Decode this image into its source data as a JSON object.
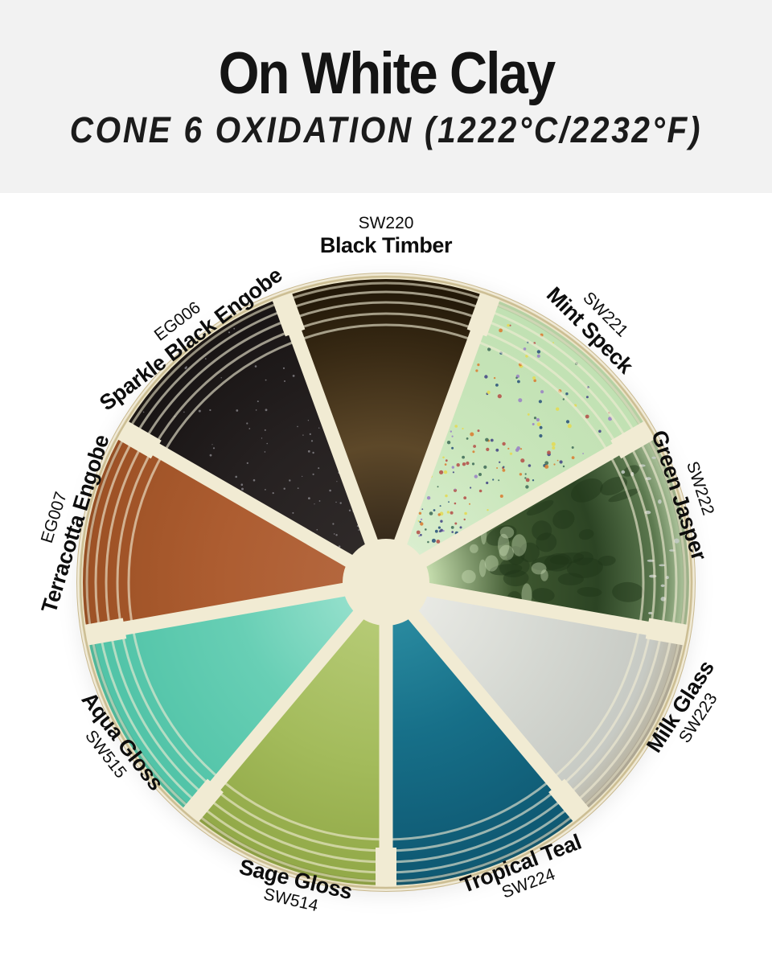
{
  "header": {
    "title": "On White Clay",
    "subtitle": "CONE 6 OXIDATION (1222°C/2232°F)"
  },
  "plate": {
    "colors": {
      "cream": "#f1ebd3",
      "edge": "#c9b98e",
      "base": "#ebe3c6",
      "page_bg": "#ffffff",
      "header_bg": "#f2f2f2",
      "text": "#141414"
    },
    "segments": [
      {
        "code": "SW220",
        "name": "Black Timber",
        "stops": [
          [
            "10%",
            "#32271a"
          ],
          [
            "45%",
            "#5d4829"
          ],
          [
            "75%",
            "#3a2b15"
          ],
          [
            "97%",
            "#221808"
          ]
        ]
      },
      {
        "code": "SW221",
        "name": "Mint Speck",
        "stops": [
          [
            "12%",
            "#daeecf"
          ],
          [
            "55%",
            "#c9e6bb"
          ],
          [
            "95%",
            "#c1e1b3"
          ]
        ],
        "speckles": [
          "#474a86",
          "#d97f35",
          "#e3da55",
          "#9b85c4",
          "#45705c",
          "#2f567c",
          "#b5544c"
        ]
      },
      {
        "code": "SW222",
        "name": "Green Jasper",
        "stops": [
          [
            "14%",
            "#c6deae"
          ],
          [
            "42%",
            "#3f5830"
          ],
          [
            "70%",
            "#2c4424"
          ],
          [
            "90%",
            "#5d7a50"
          ],
          [
            "98%",
            "#a8bf97"
          ]
        ]
      },
      {
        "code": "SW223",
        "name": "Milk Glass",
        "stops": [
          [
            "12%",
            "#e9eae5"
          ],
          [
            "55%",
            "#d5d8d2"
          ],
          [
            "90%",
            "#c7cac4"
          ],
          [
            "99%",
            "#b9b4a2"
          ]
        ]
      },
      {
        "code": "SW224",
        "name": "Tropical Teal",
        "stops": [
          [
            "12%",
            "#2a8ba0"
          ],
          [
            "50%",
            "#177089"
          ],
          [
            "93%",
            "#0f5a74"
          ]
        ]
      },
      {
        "code": "SW514",
        "name": "Sage Gloss",
        "stops": [
          [
            "12%",
            "#b6cb76"
          ],
          [
            "60%",
            "#a3bb5b"
          ],
          [
            "95%",
            "#93aa49"
          ]
        ]
      },
      {
        "code": "SW515",
        "name": "Aqua Gloss",
        "stops": [
          [
            "12%",
            "#95e0cc"
          ],
          [
            "50%",
            "#68cfb5"
          ],
          [
            "93%",
            "#52c4a8"
          ]
        ]
      },
      {
        "code": "EG007",
        "name": "Terracotta Engobe",
        "stops": [
          [
            "12%",
            "#b4673e"
          ],
          [
            "55%",
            "#ad5d31"
          ],
          [
            "95%",
            "#9e5226"
          ]
        ]
      },
      {
        "code": "EG006",
        "name": "Sparkle Black Engobe",
        "stops": [
          [
            "12%",
            "#2f2a29"
          ],
          [
            "55%",
            "#262121"
          ],
          [
            "95%",
            "#191515"
          ]
        ],
        "speckles": [
          "#d8d8e0"
        ]
      }
    ]
  }
}
